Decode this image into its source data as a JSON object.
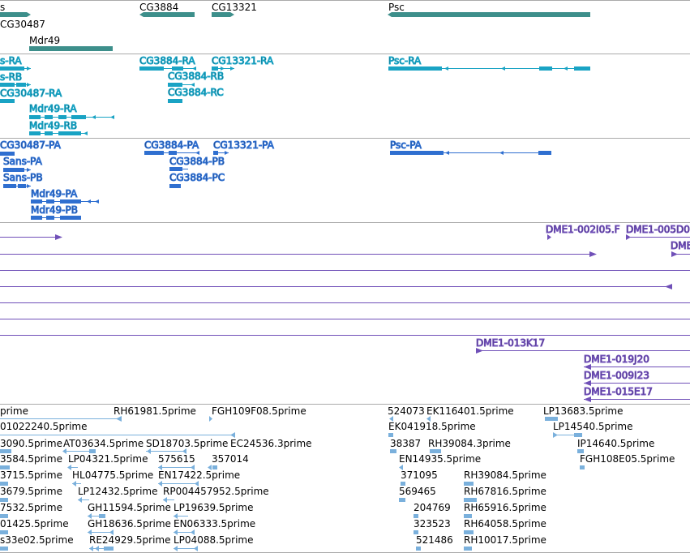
{
  "colors": {
    "gene": "#3d8f8b",
    "rna": "#19a3c4",
    "protein": "#2f6fd0",
    "clone": "#7050b8",
    "est": "#7ab0dc",
    "divider": "#aaaaaa"
  },
  "icons": {
    "strand_forward": "arrowhead-right-icon",
    "strand_reverse": "arrowhead-left-icon"
  },
  "tracks": {
    "genes": [
      {
        "label": "s"
      },
      {
        "label": "CG30487"
      },
      {
        "label": "Mdr49"
      },
      {
        "label": "CG3884"
      },
      {
        "label": "CG13321"
      },
      {
        "label": "Psc"
      }
    ],
    "transcripts": [
      {
        "label": "s-RA"
      },
      {
        "label": "s-RB"
      },
      {
        "label": "CG30487-RA"
      },
      {
        "label": "Mdr49-RA"
      },
      {
        "label": "Mdr49-RB"
      },
      {
        "label": "CG3884-RA"
      },
      {
        "label": "CG3884-RB"
      },
      {
        "label": "CG3884-RC"
      },
      {
        "label": "CG13321-RA"
      },
      {
        "label": "Psc-RA"
      }
    ],
    "proteins": [
      {
        "label": "CG30487-PA"
      },
      {
        "label": "Sans-PA"
      },
      {
        "label": "Sans-PB"
      },
      {
        "label": "Mdr49-PA"
      },
      {
        "label": "Mdr49-PB"
      },
      {
        "label": "CG3884-PA"
      },
      {
        "label": "CG3884-PB"
      },
      {
        "label": "CG3884-PC"
      },
      {
        "label": "CG13321-PA"
      },
      {
        "label": "Psc-PA"
      }
    ],
    "clones": [
      {
        "label": "DME1-002I05.F"
      },
      {
        "label": "DME1-005D0"
      },
      {
        "label": "DME"
      },
      {
        "label": "DME1-013K17"
      },
      {
        "label": "DME1-019J20"
      },
      {
        "label": "DME1-009I23"
      },
      {
        "label": "DME1-015E17"
      }
    ],
    "ests": [
      {
        "label": "prime"
      },
      {
        "label": "RH61981.5prime"
      },
      {
        "label": "FGH109F08.5prime"
      },
      {
        "label": "524073"
      },
      {
        "label": "EK116401.5prime"
      },
      {
        "label": "LP13683.5prime"
      },
      {
        "label": "01022240.5prime"
      },
      {
        "label": "EK041918.5prime"
      },
      {
        "label": "LP14540.5prime"
      },
      {
        "label": "3090.5prime"
      },
      {
        "label": "AT03634.5prime"
      },
      {
        "label": "SD18703.5prime"
      },
      {
        "label": "EC24536.3prime"
      },
      {
        "label": "38387"
      },
      {
        "label": "RH39084.3prime"
      },
      {
        "label": "IP14640.5prime"
      },
      {
        "label": "3584.5prime"
      },
      {
        "label": "LP04321.5prime"
      },
      {
        "label": "575615"
      },
      {
        "label": "357014"
      },
      {
        "label": "EN14935.5prime"
      },
      {
        "label": "FGH108E05.5prime"
      },
      {
        "label": "3715.5prime"
      },
      {
        "label": "HL04775.5prime"
      },
      {
        "label": "EN17422.5prime"
      },
      {
        "label": "371095"
      },
      {
        "label": "RH39084.5prime"
      },
      {
        "label": "3679.5prime"
      },
      {
        "label": "LP12432.5prime"
      },
      {
        "label": "RP004457952.5prime"
      },
      {
        "label": "569465"
      },
      {
        "label": "RH67816.5prime"
      },
      {
        "label": "7532.5prime"
      },
      {
        "label": "GH11594.5prime"
      },
      {
        "label": "LP19639.5prime"
      },
      {
        "label": "204769"
      },
      {
        "label": "RH65916.5prime"
      },
      {
        "label": "01425.5prime"
      },
      {
        "label": "GH18636.5prime"
      },
      {
        "label": "EN06333.5prime"
      },
      {
        "label": "323523"
      },
      {
        "label": "RH64058.5prime"
      },
      {
        "label": "s33e02.5prime"
      },
      {
        "label": "RE24929.5prime"
      },
      {
        "label": "LP04088.5prime"
      },
      {
        "label": "521486"
      },
      {
        "label": "RH10017.5prime"
      }
    ]
  }
}
